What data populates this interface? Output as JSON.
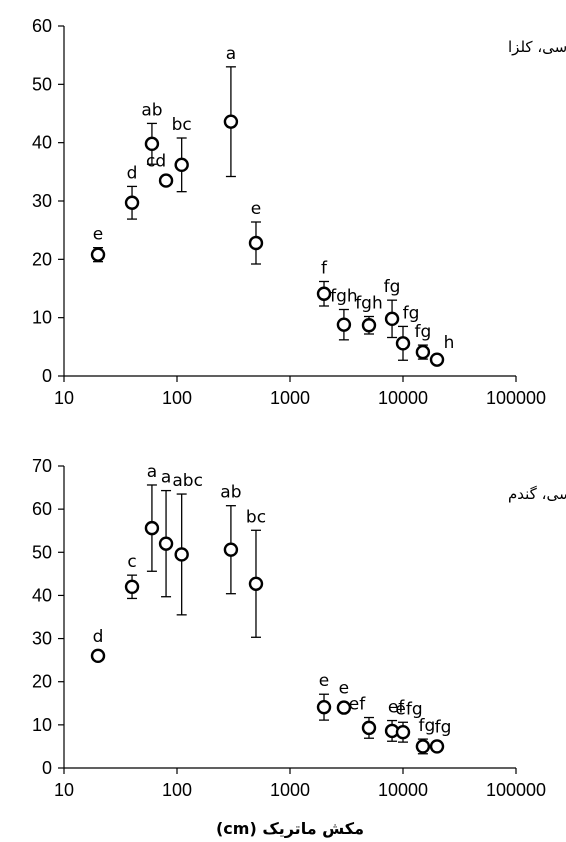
{
  "chart_data": [
    {
      "type": "scatter",
      "title": "الف)لوم رسی، کلزا",
      "xlabel": "",
      "ylabel": "",
      "x_scale": "log",
      "xlim": [
        10,
        100000
      ],
      "ylim": [
        0,
        60
      ],
      "x_ticks": [
        "10",
        "100",
        "1000",
        "10000",
        "100000"
      ],
      "y_ticks": [
        "0",
        "10",
        "20",
        "30",
        "40",
        "50",
        "60"
      ],
      "legend": "none",
      "grid": false,
      "points": [
        {
          "x": 20,
          "y": 20.8,
          "err": 1.2,
          "label": "e"
        },
        {
          "x": 40,
          "y": 29.7,
          "err": 2.8,
          "label": "d"
        },
        {
          "x": 60,
          "y": 39.8,
          "err": 3.5,
          "label": "ab"
        },
        {
          "x": 80,
          "y": 33.5,
          "err": 0,
          "label": "cd"
        },
        {
          "x": 110,
          "y": 36.2,
          "err": 4.6,
          "label": "bc"
        },
        {
          "x": 300,
          "y": 43.6,
          "err": 9.4,
          "label": "a"
        },
        {
          "x": 500,
          "y": 22.8,
          "err": 3.6,
          "label": "e"
        },
        {
          "x": 2000,
          "y": 14.1,
          "err": 2.1,
          "label": "f"
        },
        {
          "x": 3000,
          "y": 8.8,
          "err": 2.6,
          "label": "fgh"
        },
        {
          "x": 5000,
          "y": 8.7,
          "err": 1.5,
          "label": "fgh"
        },
        {
          "x": 8000,
          "y": 9.8,
          "err": 3.2,
          "label": "fg"
        },
        {
          "x": 10000,
          "y": 5.6,
          "err": 2.9,
          "label": "fg"
        },
        {
          "x": 15000,
          "y": 4.1,
          "err": 1.2,
          "label": "fg"
        },
        {
          "x": 20000,
          "y": 2.8,
          "err": 0.6,
          "label": "h"
        }
      ]
    },
    {
      "type": "scatter",
      "title": "پ) لوم رسی، گندم",
      "xlabel": "مکش ماتریک (cm)",
      "ylabel": "",
      "x_scale": "log",
      "xlim": [
        10,
        100000
      ],
      "ylim": [
        0,
        70
      ],
      "x_ticks": [
        "10",
        "100",
        "1000",
        "10000",
        "100000"
      ],
      "y_ticks": [
        "0",
        "10",
        "20",
        "30",
        "40",
        "50",
        "60",
        "70"
      ],
      "legend": "none",
      "grid": false,
      "points": [
        {
          "x": 20,
          "y": 26.0,
          "err": 0,
          "label": "d"
        },
        {
          "x": 40,
          "y": 42.0,
          "err": 2.7,
          "label": "c"
        },
        {
          "x": 60,
          "y": 55.6,
          "err": 10.0,
          "label": "a"
        },
        {
          "x": 80,
          "y": 52.0,
          "err": 12.3,
          "label": "a"
        },
        {
          "x": 110,
          "y": 49.5,
          "err": 14.0,
          "label": "abc"
        },
        {
          "x": 300,
          "y": 50.6,
          "err": 10.2,
          "label": "ab"
        },
        {
          "x": 500,
          "y": 42.7,
          "err": 12.4,
          "label": "bc"
        },
        {
          "x": 2000,
          "y": 14.1,
          "err": 3.0,
          "label": "e"
        },
        {
          "x": 3000,
          "y": 14.0,
          "err": 0,
          "label": "e"
        },
        {
          "x": 5000,
          "y": 9.3,
          "err": 2.4,
          "label": "ef"
        },
        {
          "x": 8000,
          "y": 8.6,
          "err": 2.4,
          "label": "ef"
        },
        {
          "x": 10000,
          "y": 8.3,
          "err": 2.3,
          "label": "efg"
        },
        {
          "x": 15000,
          "y": 5.0,
          "err": 1.7,
          "label": "fg"
        },
        {
          "x": 20000,
          "y": 5.0,
          "err": 0,
          "label": "fg"
        }
      ]
    }
  ]
}
